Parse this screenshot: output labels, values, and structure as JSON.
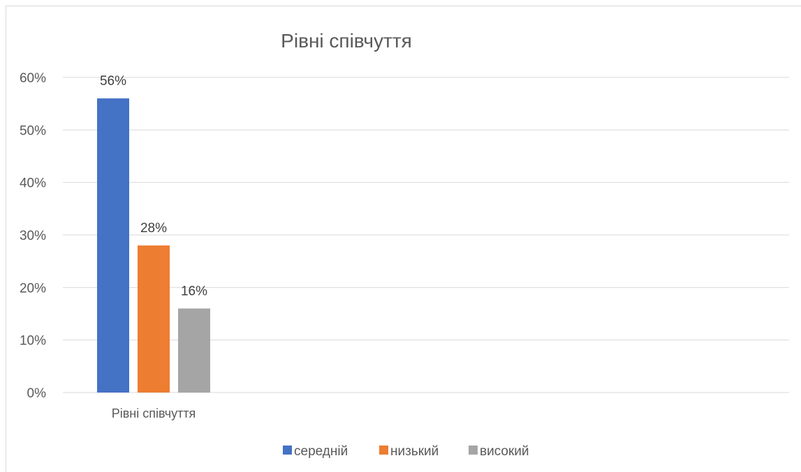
{
  "chart_data": {
    "type": "bar",
    "title": "Рівні співчуття",
    "categories": [
      "Рівні співчуття"
    ],
    "series": [
      {
        "name": "середній",
        "values": [
          0.56
        ],
        "label": "56%",
        "color": "#4472C4"
      },
      {
        "name": "низький",
        "values": [
          0.28
        ],
        "label": "28%",
        "color": "#ED7D31"
      },
      {
        "name": "високий",
        "values": [
          0.16
        ],
        "label": "16%",
        "color": "#A5A5A5"
      }
    ],
    "ylim": [
      0,
      0.6
    ],
    "yticks": [
      "0%",
      "10%",
      "20%",
      "30%",
      "40%",
      "50%",
      "60%"
    ],
    "xlabel": "",
    "ylabel": "",
    "grid": true,
    "legend": "bottom",
    "gridline_color": "#d9d9d9"
  }
}
